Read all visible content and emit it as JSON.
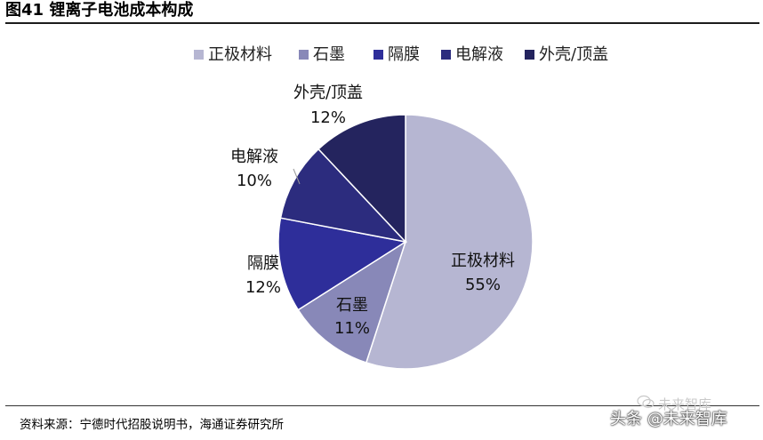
{
  "title": "图41 锂离子电池成本构成",
  "source": "资料来源：宁德时代招股说明书，海通证券研究所",
  "watermark": "未来智库",
  "credit": "头条 @未来智库",
  "chart_data": {
    "type": "pie",
    "unit": "%",
    "legend_position": "top",
    "slices": [
      {
        "label": "正极材料",
        "value": 55,
        "value_label": "55%",
        "color": "#b6b6d2"
      },
      {
        "label": "石墨",
        "value": 11,
        "value_label": "11%",
        "color": "#8888b8"
      },
      {
        "label": "隔膜",
        "value": 12,
        "value_label": "12%",
        "color": "#2e2e9a"
      },
      {
        "label": "电解液",
        "value": 10,
        "value_label": "10%",
        "color": "#2c2c7e"
      },
      {
        "label": "外壳/顶盖",
        "value": 12,
        "value_label": "12%",
        "color": "#24245e"
      }
    ]
  }
}
